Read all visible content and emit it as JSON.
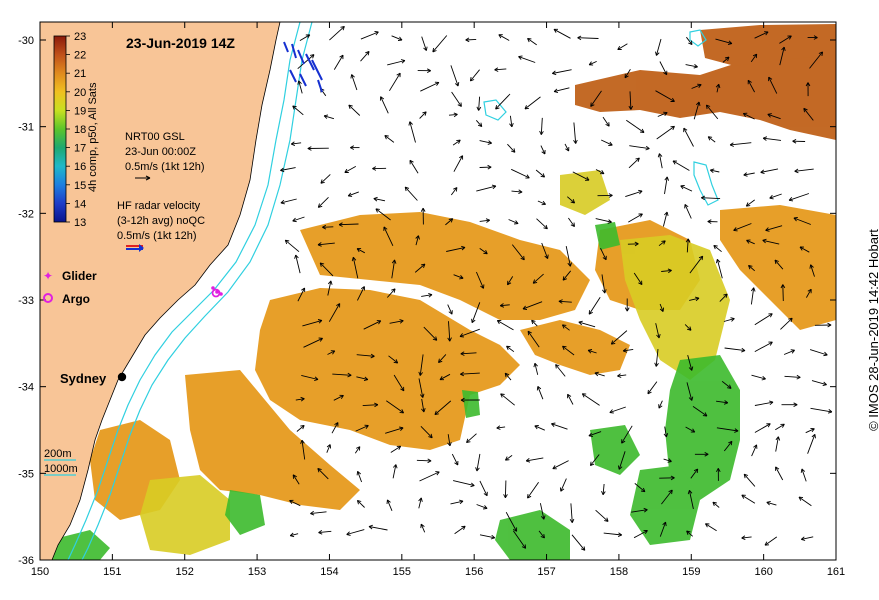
{
  "title": "23-Jun-2019 14Z",
  "credit": "© IMOS 28-Jun-2019 14:42 Hobart",
  "colorbar": {
    "label": "4h comp, p50, All Sats",
    "ticks": [
      "23",
      "22",
      "21",
      "20",
      "19",
      "18",
      "17",
      "16",
      "15",
      "14",
      "13"
    ]
  },
  "legend": {
    "gsl_line1": "NRT00 GSL",
    "gsl_line2": "23-Jun 00:00Z",
    "gsl_line3": "0.5m/s (1kt 12h)",
    "hf_line1": "HF radar velocity",
    "hf_line2": "(3-12h avg) noQC",
    "hf_line3": "0.5m/s (1kt 12h)",
    "glider": "Glider",
    "argo": "Argo",
    "iso200": "200m",
    "iso1000": "1000m"
  },
  "places": {
    "sydney": "Sydney"
  },
  "axes": {
    "x_ticks": [
      "150",
      "151",
      "152",
      "153",
      "154",
      "155",
      "156",
      "157",
      "158",
      "159",
      "160",
      "161"
    ],
    "y_ticks": [
      "-30",
      "-31",
      "-32",
      "-33",
      "-34",
      "-35",
      "-36"
    ]
  },
  "colors": {
    "land": "#f8c597",
    "coast": "#000000",
    "isobath": "#30d0e0",
    "hf_radar_arrow": "#1530d0",
    "glider": "#e020e0",
    "argo": "#e020e0",
    "sst_warm": "#c0621a",
    "sst_mid": "#e69a1e",
    "sst_cool": "#3cba2c"
  }
}
